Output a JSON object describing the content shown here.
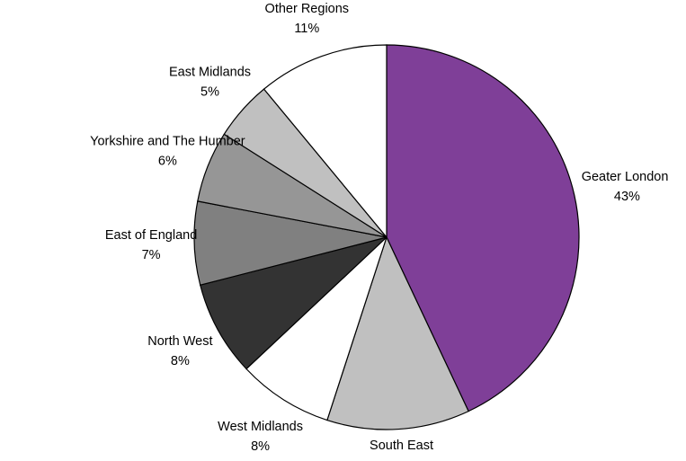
{
  "chart_data": {
    "type": "pie",
    "start_angle_deg": 0,
    "direction": "clockwise",
    "legend": "none",
    "slices": [
      {
        "label": "Geater London",
        "value": 43,
        "value_label": "43%",
        "color": "#7f3f98"
      },
      {
        "label": "South East",
        "value": 12,
        "value_label": "",
        "color": "#c0c0c0"
      },
      {
        "label": "West Midlands",
        "value": 8,
        "value_label": "8%",
        "color": "#ffffff"
      },
      {
        "label": "North West",
        "value": 8,
        "value_label": "8%",
        "color": "#333333"
      },
      {
        "label": "East of England",
        "value": 7,
        "value_label": "7%",
        "color": "#808080"
      },
      {
        "label": "Yorkshire and The Humber",
        "value": 6,
        "value_label": "6%",
        "color": "#969696"
      },
      {
        "label": "East Midlands",
        "value": 5,
        "value_label": "5%",
        "color": "#c0c0c0"
      },
      {
        "label": "Other Regions",
        "value": 11,
        "value_label": "11%",
        "color": "#ffffff"
      }
    ]
  }
}
